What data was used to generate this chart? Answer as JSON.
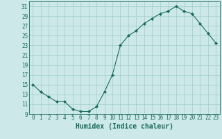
{
  "x": [
    0,
    1,
    2,
    3,
    4,
    5,
    6,
    7,
    8,
    9,
    10,
    11,
    12,
    13,
    14,
    15,
    16,
    17,
    18,
    19,
    20,
    21,
    22,
    23
  ],
  "y": [
    15,
    13.5,
    12.5,
    11.5,
    11.5,
    10,
    9.5,
    9.5,
    10.5,
    13.5,
    17,
    23,
    25,
    26,
    27.5,
    28.5,
    29.5,
    30,
    31,
    30,
    29.5,
    27.5,
    25.5,
    23.5
  ],
  "title": "",
  "xlabel": "Humidex (Indice chaleur)",
  "ylabel": "",
  "ylim": [
    9,
    32
  ],
  "xlim": [
    -0.5,
    23.5
  ],
  "yticks": [
    9,
    11,
    13,
    15,
    17,
    19,
    21,
    23,
    25,
    27,
    29,
    31
  ],
  "xticks": [
    0,
    1,
    2,
    3,
    4,
    5,
    6,
    7,
    8,
    9,
    10,
    11,
    12,
    13,
    14,
    15,
    16,
    17,
    18,
    19,
    20,
    21,
    22,
    23
  ],
  "line_color": "#1a6b5a",
  "marker": "D",
  "marker_size": 2,
  "bg_color": "#cce8e8",
  "grid_color": "#a0cccc",
  "tick_label_fontsize": 5.5,
  "xlabel_fontsize": 7.0
}
